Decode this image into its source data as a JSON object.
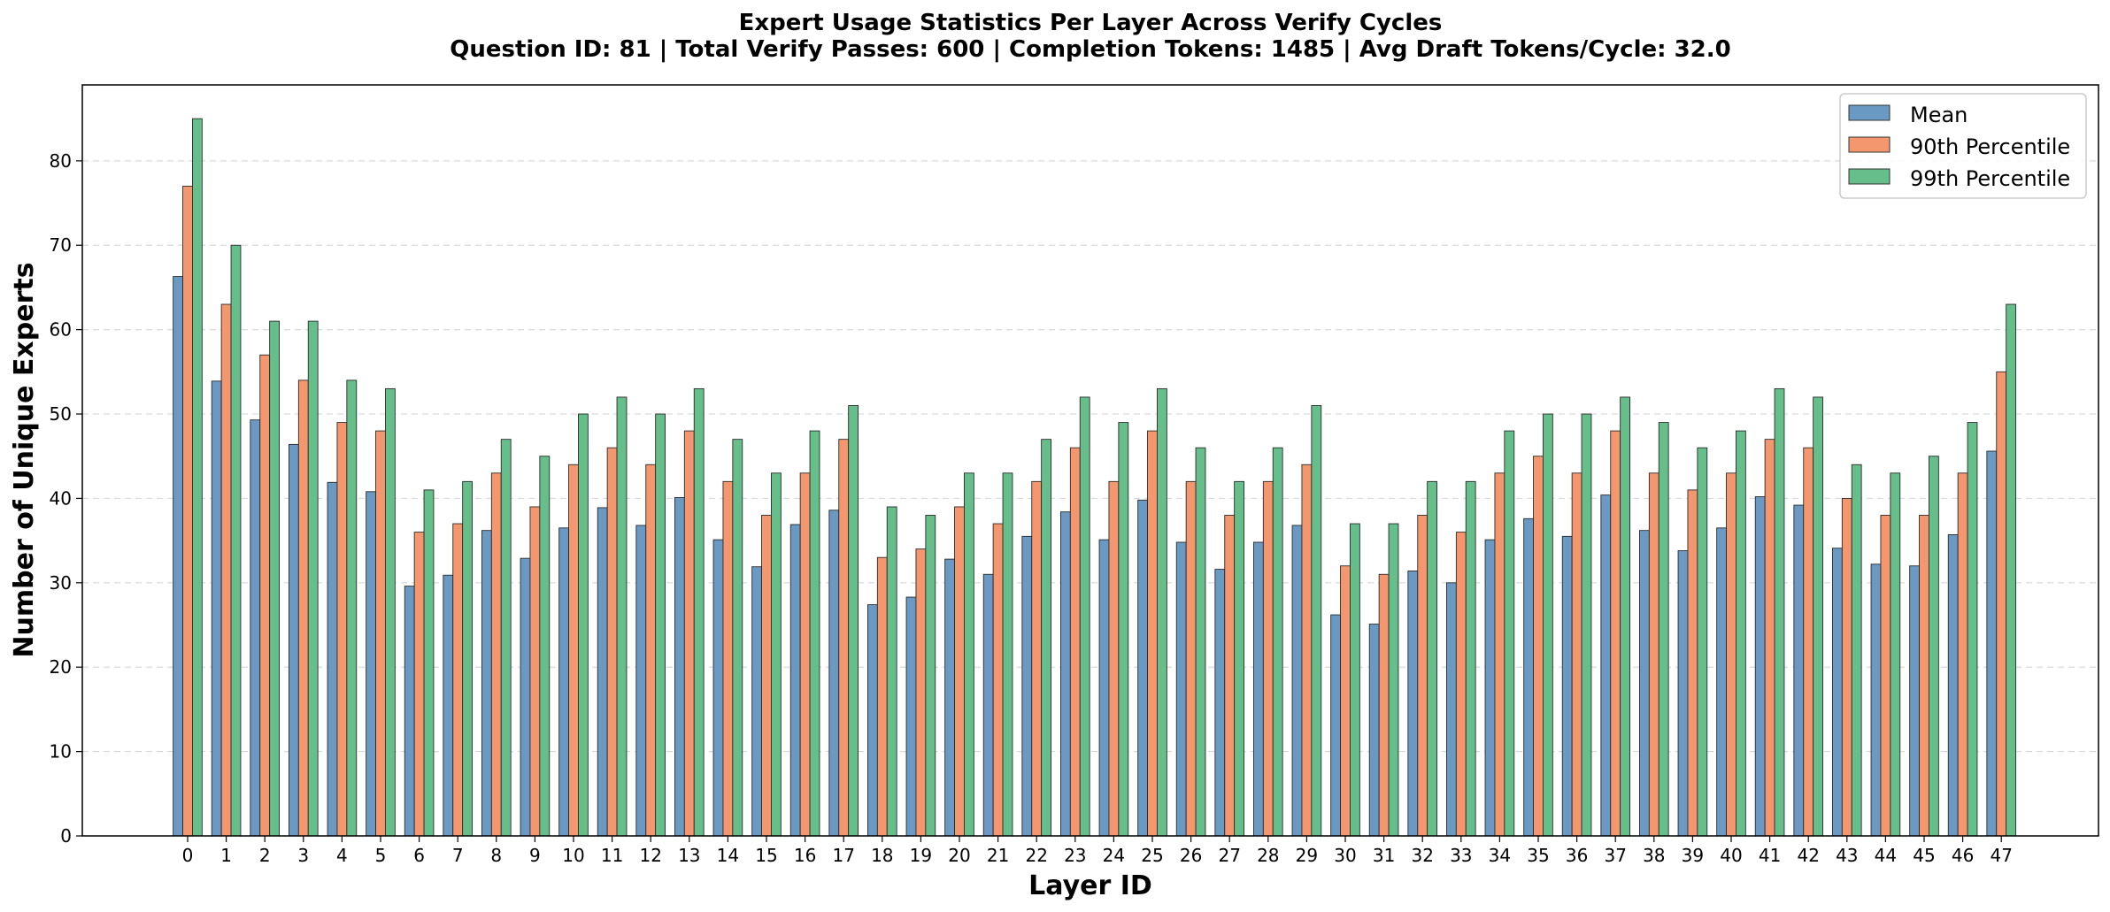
{
  "chart_data": {
    "type": "bar",
    "title": "Expert Usage Statistics Per Layer Across Verify Cycles",
    "subtitle": "Question ID: 81 | Total Verify Passes: 600 | Completion Tokens: 1485 | Avg Draft Tokens/Cycle: 32.0",
    "xlabel": "Layer ID",
    "ylabel": "Number of Unique Experts",
    "ylim": [
      0,
      89
    ],
    "yticks": [
      0,
      10,
      20,
      30,
      40,
      50,
      60,
      70,
      80
    ],
    "grid": "y-dashed",
    "legend_position": "top-right",
    "categories": [
      "0",
      "1",
      "2",
      "3",
      "4",
      "5",
      "6",
      "7",
      "8",
      "9",
      "10",
      "11",
      "12",
      "13",
      "14",
      "15",
      "16",
      "17",
      "18",
      "19",
      "20",
      "21",
      "22",
      "23",
      "24",
      "25",
      "26",
      "27",
      "28",
      "29",
      "30",
      "31",
      "32",
      "33",
      "34",
      "35",
      "36",
      "37",
      "38",
      "39",
      "40",
      "41",
      "42",
      "43",
      "44",
      "45",
      "46",
      "47"
    ],
    "series": [
      {
        "name": "Mean",
        "color": "#6a9ac4",
        "values": [
          66.3,
          53.9,
          49.3,
          46.4,
          41.9,
          40.8,
          29.6,
          30.9,
          36.2,
          32.9,
          36.5,
          38.9,
          36.8,
          40.1,
          35.1,
          31.9,
          36.9,
          38.6,
          27.4,
          28.3,
          32.8,
          31.0,
          35.5,
          38.4,
          35.1,
          39.8,
          34.8,
          31.6,
          34.8,
          36.8,
          26.2,
          25.1,
          31.4,
          30.0,
          35.1,
          37.6,
          35.5,
          40.4,
          36.2,
          33.8,
          36.5,
          40.2,
          39.2,
          34.1,
          32.2,
          32.0,
          35.7,
          45.6
        ]
      },
      {
        "name": "90th Percentile",
        "color": "#f4976e",
        "values": [
          77,
          63,
          57,
          54,
          49,
          48,
          36,
          37,
          43,
          39,
          44,
          46,
          44,
          48,
          42,
          38,
          43,
          47,
          33,
          34,
          39,
          37,
          42,
          46,
          42,
          48,
          42,
          38,
          42,
          44,
          32,
          31,
          38,
          36,
          43,
          45,
          43,
          48,
          43,
          41,
          43,
          47,
          46,
          40,
          38,
          38,
          43,
          55
        ]
      },
      {
        "name": "99th Percentile",
        "color": "#66bf8a",
        "values": [
          85,
          70,
          61,
          61,
          54,
          53,
          41,
          42,
          47,
          45,
          50,
          52,
          50,
          53,
          47,
          43,
          48,
          51,
          39,
          38,
          43,
          43,
          47,
          52,
          49,
          53,
          46,
          42,
          46,
          51,
          37,
          37,
          42,
          42,
          48,
          50,
          50,
          52,
          49,
          46,
          48,
          53,
          52,
          44,
          43,
          45,
          49,
          63
        ]
      }
    ]
  }
}
